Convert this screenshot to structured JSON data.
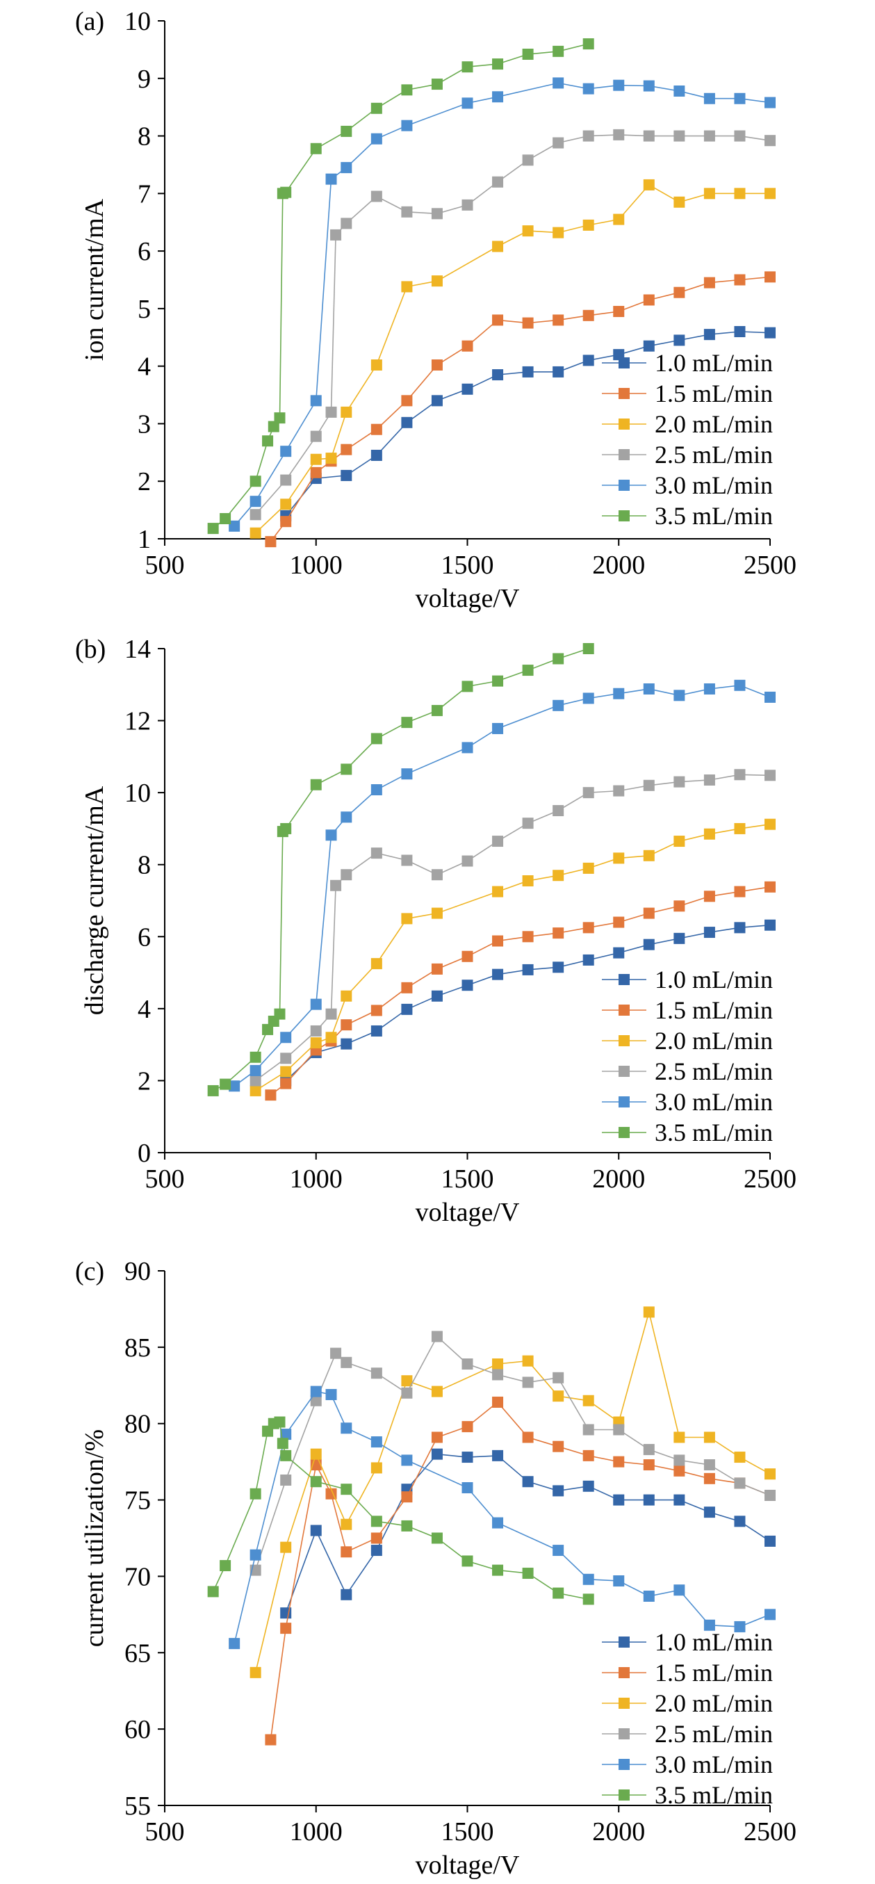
{
  "colors": {
    "s1": "#3466a8",
    "s2": "#e2773a",
    "s3": "#efb423",
    "s4": "#a3a3a3",
    "s5": "#4d8ed0",
    "s6": "#6aab4f",
    "axis": "#000000"
  },
  "chart_data": [
    {
      "type": "line",
      "panel_label": "(a)",
      "xlabel": "voltage/V",
      "ylabel": "ion current/mA",
      "xlim": [
        500,
        2500
      ],
      "ylim": [
        1,
        10
      ],
      "xticks": [
        500,
        1000,
        1500,
        2000,
        2500
      ],
      "yticks": [
        1,
        2,
        3,
        4,
        5,
        6,
        7,
        8,
        9,
        10
      ],
      "legend": "bottom-right",
      "series": [
        {
          "name": "1.0 mL/min",
          "x": [
            900,
            1000,
            1100,
            1200,
            1300,
            1400,
            1500,
            1600,
            1700,
            1800,
            1900,
            2000,
            2100,
            2200,
            2300,
            2400,
            2500
          ],
          "y": [
            1.4,
            2.05,
            2.1,
            2.45,
            3.02,
            3.4,
            3.6,
            3.85,
            3.9,
            3.9,
            4.1,
            4.2,
            4.35,
            4.45,
            4.55,
            4.6,
            4.58
          ]
        },
        {
          "name": "1.5 mL/min",
          "x": [
            850,
            900,
            1000,
            1050,
            1100,
            1200,
            1300,
            1400,
            1500,
            1600,
            1700,
            1800,
            1900,
            2000,
            2100,
            2200,
            2300,
            2400,
            2500
          ],
          "y": [
            0.95,
            1.3,
            2.15,
            2.35,
            2.55,
            2.9,
            3.4,
            4.02,
            4.35,
            4.8,
            4.75,
            4.8,
            4.88,
            4.95,
            5.15,
            5.28,
            5.45,
            5.5,
            5.55
          ]
        },
        {
          "name": "2.0 mL/min",
          "x": [
            800,
            900,
            1000,
            1050,
            1100,
            1200,
            1300,
            1400,
            1600,
            1700,
            1800,
            1900,
            2000,
            2100,
            2200,
            2300,
            2400,
            2500
          ],
          "y": [
            1.1,
            1.6,
            2.38,
            2.4,
            3.2,
            4.02,
            5.38,
            5.48,
            6.08,
            6.35,
            6.32,
            6.45,
            6.55,
            7.15,
            6.85,
            7.0,
            7.0,
            7.0
          ]
        },
        {
          "name": "2.5 mL/min",
          "x": [
            800,
            900,
            1000,
            1050,
            1065,
            1100,
            1200,
            1300,
            1400,
            1500,
            1600,
            1700,
            1800,
            1900,
            2000,
            2100,
            2200,
            2300,
            2400,
            2500
          ],
          "y": [
            1.42,
            2.02,
            2.78,
            3.2,
            6.28,
            6.48,
            6.95,
            6.68,
            6.65,
            6.8,
            7.2,
            7.58,
            7.88,
            8.0,
            8.02,
            8.0,
            8.0,
            8.0,
            8.0,
            7.92
          ]
        },
        {
          "name": "3.0 mL/min",
          "x": [
            730,
            800,
            900,
            1000,
            1050,
            1100,
            1200,
            1300,
            1500,
            1600,
            1800,
            1900,
            2000,
            2100,
            2200,
            2300,
            2400,
            2500
          ],
          "y": [
            1.22,
            1.65,
            2.52,
            3.4,
            7.25,
            7.45,
            7.95,
            8.18,
            8.57,
            8.68,
            8.92,
            8.82,
            8.88,
            8.87,
            8.78,
            8.65,
            8.65,
            8.58
          ]
        },
        {
          "name": "3.5 mL/min",
          "x": [
            660,
            700,
            800,
            840,
            860,
            880,
            890,
            900,
            1000,
            1100,
            1200,
            1300,
            1400,
            1500,
            1600,
            1700,
            1800,
            1900
          ],
          "y": [
            1.18,
            1.35,
            2.0,
            2.7,
            2.95,
            3.1,
            7.0,
            7.02,
            7.78,
            8.08,
            8.48,
            8.8,
            8.9,
            9.2,
            9.25,
            9.42,
            9.47,
            9.6
          ]
        }
      ]
    },
    {
      "type": "line",
      "panel_label": "(b)",
      "xlabel": "voltage/V",
      "ylabel": "discharge current/mA",
      "xlim": [
        500,
        2500
      ],
      "ylim": [
        0,
        14
      ],
      "xticks": [
        500,
        1000,
        1500,
        2000,
        2500
      ],
      "yticks": [
        0,
        2,
        4,
        6,
        8,
        10,
        12,
        14
      ],
      "legend": "bottom-right",
      "series": [
        {
          "name": "1.0 mL/min",
          "x": [
            900,
            1000,
            1100,
            1200,
            1300,
            1400,
            1500,
            1600,
            1700,
            1800,
            1900,
            2000,
            2100,
            2200,
            2300,
            2400,
            2500
          ],
          "y": [
            2.0,
            2.78,
            3.02,
            3.38,
            3.98,
            4.35,
            4.65,
            4.95,
            5.08,
            5.15,
            5.35,
            5.55,
            5.78,
            5.95,
            6.12,
            6.25,
            6.32
          ]
        },
        {
          "name": "1.5 mL/min",
          "x": [
            850,
            900,
            1000,
            1050,
            1100,
            1200,
            1300,
            1400,
            1500,
            1600,
            1700,
            1800,
            1900,
            2000,
            2100,
            2200,
            2300,
            2400,
            2500
          ],
          "y": [
            1.6,
            1.92,
            2.85,
            3.1,
            3.55,
            3.95,
            4.58,
            5.1,
            5.45,
            5.88,
            6.0,
            6.1,
            6.25,
            6.4,
            6.65,
            6.85,
            7.12,
            7.25,
            7.38
          ]
        },
        {
          "name": "2.0 mL/min",
          "x": [
            800,
            900,
            1000,
            1050,
            1100,
            1200,
            1300,
            1400,
            1600,
            1700,
            1800,
            1900,
            2000,
            2100,
            2200,
            2300,
            2400,
            2500
          ],
          "y": [
            1.72,
            2.25,
            3.05,
            3.2,
            4.35,
            5.25,
            6.5,
            6.65,
            7.25,
            7.55,
            7.7,
            7.9,
            8.18,
            8.25,
            8.65,
            8.85,
            9.0,
            9.12
          ]
        },
        {
          "name": "2.5 mL/min",
          "x": [
            800,
            900,
            1000,
            1050,
            1065,
            1100,
            1200,
            1300,
            1400,
            1500,
            1600,
            1700,
            1800,
            1900,
            2000,
            2100,
            2200,
            2300,
            2400,
            2500
          ],
          "y": [
            2.0,
            2.62,
            3.38,
            3.85,
            7.42,
            7.72,
            8.32,
            8.12,
            7.72,
            8.1,
            8.65,
            9.15,
            9.5,
            10.0,
            10.05,
            10.2,
            10.3,
            10.35,
            10.5,
            10.48
          ]
        },
        {
          "name": "3.0 mL/min",
          "x": [
            730,
            800,
            900,
            1000,
            1050,
            1100,
            1200,
            1300,
            1500,
            1600,
            1800,
            1900,
            2000,
            2100,
            2200,
            2300,
            2400,
            2500
          ],
          "y": [
            1.85,
            2.28,
            3.2,
            4.12,
            8.82,
            9.32,
            10.08,
            10.52,
            11.25,
            11.78,
            12.42,
            12.62,
            12.75,
            12.88,
            12.7,
            12.88,
            12.98,
            12.65
          ]
        },
        {
          "name": "3.5 mL/min",
          "x": [
            660,
            700,
            800,
            840,
            860,
            880,
            890,
            900,
            1000,
            1100,
            1200,
            1300,
            1400,
            1500,
            1600,
            1700,
            1800,
            1900
          ],
          "y": [
            1.72,
            1.9,
            2.65,
            3.42,
            3.65,
            3.85,
            8.92,
            9.0,
            10.22,
            10.65,
            11.5,
            11.95,
            12.28,
            12.95,
            13.1,
            13.4,
            13.72,
            14.0
          ]
        }
      ]
    },
    {
      "type": "line",
      "panel_label": "(c)",
      "xlabel": "voltage/V",
      "ylabel": "current utilization/%",
      "xlim": [
        500,
        2500
      ],
      "ylim": [
        55,
        90
      ],
      "xticks": [
        500,
        1000,
        1500,
        2000,
        2500
      ],
      "yticks": [
        55,
        60,
        65,
        70,
        75,
        80,
        85,
        90
      ],
      "legend": "bottom-right",
      "series": [
        {
          "name": "1.0 mL/min",
          "x": [
            900,
            1000,
            1100,
            1200,
            1300,
            1400,
            1500,
            1600,
            1700,
            1800,
            1900,
            2000,
            2100,
            2200,
            2300,
            2400,
            2500
          ],
          "y": [
            67.6,
            73.0,
            68.8,
            71.7,
            75.7,
            78.0,
            77.8,
            77.9,
            76.2,
            75.6,
            75.9,
            75.0,
            75.0,
            75.0,
            74.2,
            73.6,
            72.3
          ]
        },
        {
          "name": "1.5 mL/min",
          "x": [
            850,
            900,
            1000,
            1050,
            1100,
            1200,
            1300,
            1400,
            1500,
            1600,
            1700,
            1800,
            1900,
            2000,
            2100,
            2200,
            2300,
            2400,
            2500
          ],
          "y": [
            59.3,
            66.6,
            77.3,
            75.4,
            71.6,
            72.5,
            75.2,
            79.1,
            79.8,
            81.4,
            79.1,
            78.5,
            77.9,
            77.5,
            77.3,
            76.9,
            76.4,
            76.1,
            75.3
          ]
        },
        {
          "name": "2.0 mL/min",
          "x": [
            800,
            900,
            1000,
            1100,
            1200,
            1300,
            1400,
            1600,
            1700,
            1800,
            1900,
            2000,
            2100,
            2200,
            2300,
            2400,
            2500
          ],
          "y": [
            63.7,
            71.9,
            78.0,
            73.4,
            77.1,
            82.8,
            82.1,
            83.9,
            84.1,
            81.8,
            81.5,
            80.1,
            87.3,
            79.1,
            79.1,
            77.8,
            76.7
          ]
        },
        {
          "name": "2.5 mL/min",
          "x": [
            800,
            900,
            1000,
            1065,
            1100,
            1200,
            1300,
            1400,
            1500,
            1600,
            1700,
            1800,
            1900,
            2000,
            2100,
            2200,
            2300,
            2400,
            2500
          ],
          "y": [
            70.4,
            76.3,
            81.5,
            84.6,
            84.0,
            83.3,
            82.0,
            85.7,
            83.9,
            83.2,
            82.7,
            83.0,
            79.6,
            79.6,
            78.3,
            77.6,
            77.3,
            76.1,
            75.3
          ]
        },
        {
          "name": "3.0 mL/min",
          "x": [
            730,
            800,
            900,
            1000,
            1050,
            1100,
            1200,
            1300,
            1500,
            1600,
            1800,
            1900,
            2000,
            2100,
            2200,
            2300,
            2400,
            2500
          ],
          "y": [
            65.6,
            71.4,
            79.3,
            82.1,
            81.9,
            79.7,
            78.8,
            77.6,
            75.8,
            73.5,
            71.7,
            69.8,
            69.7,
            68.7,
            69.1,
            66.8,
            66.7,
            67.5
          ]
        },
        {
          "name": "3.5 mL/min",
          "x": [
            660,
            700,
            800,
            840,
            860,
            880,
            890,
            900,
            1000,
            1100,
            1200,
            1300,
            1400,
            1500,
            1600,
            1700,
            1800,
            1900
          ],
          "y": [
            69.0,
            70.7,
            75.4,
            79.5,
            80.0,
            80.1,
            78.7,
            77.9,
            76.2,
            75.7,
            73.6,
            73.3,
            72.5,
            71.0,
            70.4,
            70.2,
            68.9,
            68.5
          ]
        }
      ]
    }
  ]
}
